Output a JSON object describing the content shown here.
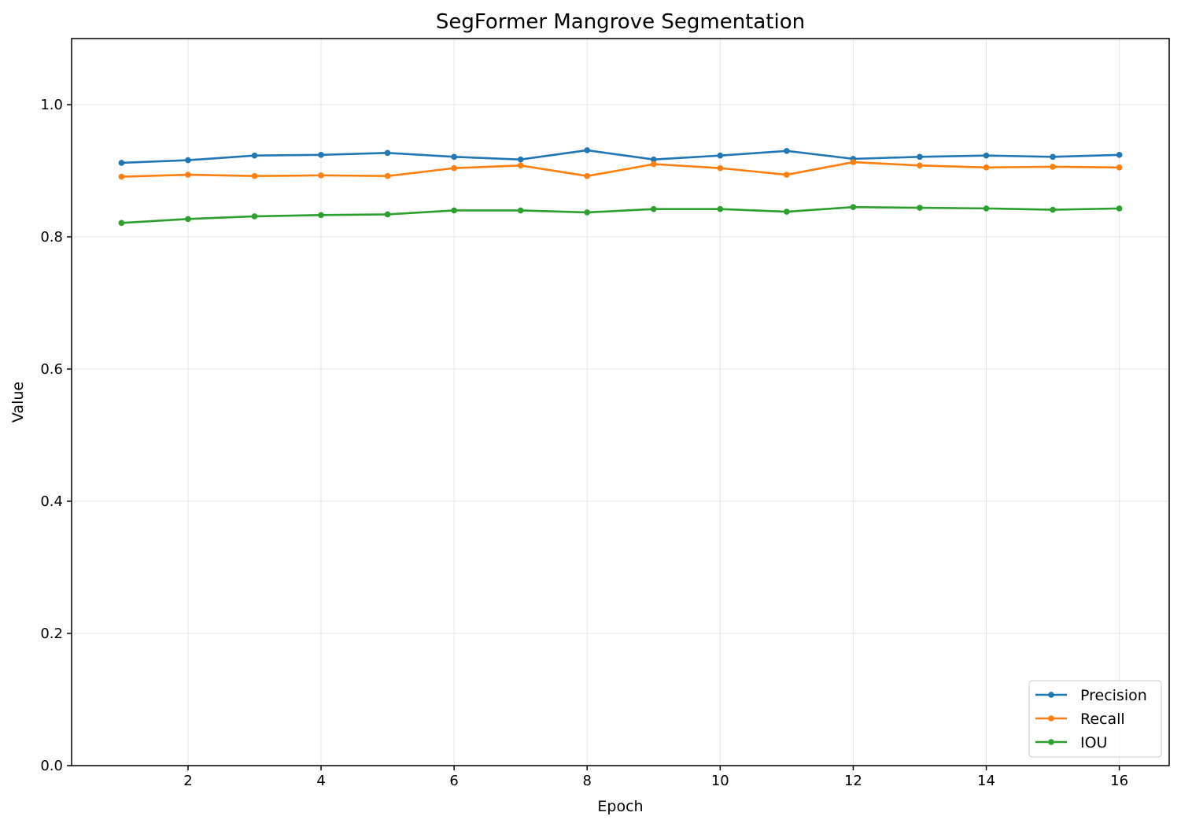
{
  "chart_data": {
    "type": "line",
    "title": "SegFormer Mangrove Segmentation",
    "xlabel": "Epoch",
    "ylabel": "Value",
    "xlim": [
      0.25,
      16.75
    ],
    "ylim": [
      0.0,
      1.1
    ],
    "xticks": [
      2,
      4,
      6,
      8,
      10,
      12,
      14,
      16
    ],
    "xtick_labels": [
      "2",
      "4",
      "6",
      "8",
      "10",
      "12",
      "14",
      "16"
    ],
    "yticks": [
      0.0,
      0.2,
      0.4,
      0.6,
      0.8,
      1.0
    ],
    "ytick_labels": [
      "0.0",
      "0.2",
      "0.4",
      "0.6",
      "0.8",
      "1.0"
    ],
    "grid": true,
    "legend_position": "lower right",
    "x": [
      1,
      2,
      3,
      4,
      5,
      6,
      7,
      8,
      9,
      10,
      11,
      12,
      13,
      14,
      15,
      16
    ],
    "series": [
      {
        "name": "Precision",
        "color": "#1f77b4",
        "marker": "circle",
        "values": [
          0.912,
          0.916,
          0.923,
          0.924,
          0.927,
          0.921,
          0.917,
          0.931,
          0.917,
          0.923,
          0.93,
          0.918,
          0.921,
          0.923,
          0.921,
          0.924
        ]
      },
      {
        "name": "Recall",
        "color": "#ff7f0e",
        "marker": "circle",
        "values": [
          0.891,
          0.894,
          0.892,
          0.893,
          0.892,
          0.904,
          0.908,
          0.892,
          0.91,
          0.904,
          0.894,
          0.913,
          0.908,
          0.905,
          0.906,
          0.905
        ]
      },
      {
        "name": "IOU",
        "color": "#2ca02c",
        "marker": "circle",
        "values": [
          0.821,
          0.827,
          0.831,
          0.833,
          0.834,
          0.84,
          0.84,
          0.837,
          0.842,
          0.842,
          0.838,
          0.845,
          0.844,
          0.843,
          0.841,
          0.843
        ]
      }
    ]
  }
}
